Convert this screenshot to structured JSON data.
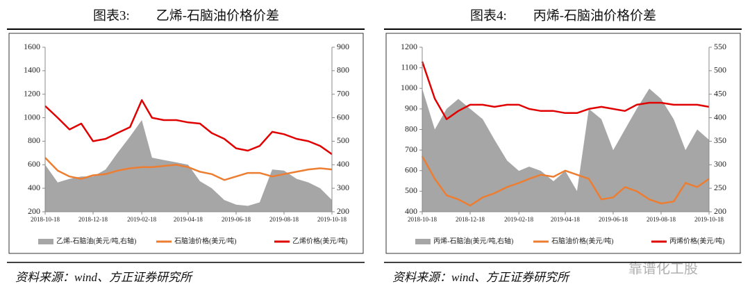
{
  "chart_data": [
    {
      "type": "line",
      "title": "图表3:　　乙烯-石脑油价格价差",
      "x": [
        "2018-10-18",
        "2018-11-03",
        "2018-11-18",
        "2018-12-03",
        "2018-12-18",
        "2019-01-03",
        "2019-01-18",
        "2019-02-03",
        "2019-02-18",
        "2019-03-03",
        "2019-03-18",
        "2019-04-03",
        "2019-04-18",
        "2019-05-03",
        "2019-05-18",
        "2019-06-03",
        "2019-06-18",
        "2019-07-03",
        "2019-07-18",
        "2019-08-03",
        "2019-08-18",
        "2019-09-03",
        "2019-09-18",
        "2019-10-03",
        "2019-10-18"
      ],
      "xlim": [
        "2018-10-18",
        "2019-10-18"
      ],
      "xticks": [
        "2018-10-18",
        "2018-12-18",
        "2019-02-18",
        "2019-04-18",
        "2019-06-18",
        "2019-08-18",
        "2019-10-18"
      ],
      "ylim": [
        200,
        1600
      ],
      "yticks": [
        200,
        400,
        600,
        800,
        1000,
        1200,
        1400,
        1600
      ],
      "y2lim": [
        200,
        900
      ],
      "y2ticks": [
        200,
        300,
        400,
        500,
        600,
        700,
        800,
        900
      ],
      "series": [
        {
          "name": "乙烯-石脑油(美元/吨,右轴)",
          "type": "area",
          "axis": "y2",
          "color": "#a6a6a6",
          "values": [
            400,
            325,
            340,
            350,
            350,
            380,
            450,
            520,
            590,
            430,
            420,
            410,
            400,
            330,
            300,
            250,
            230,
            225,
            240,
            380,
            375,
            340,
            325,
            300,
            250
          ]
        },
        {
          "name": "石脑油价格(美元/吨)",
          "type": "line",
          "color": "#ed7d31",
          "values": [
            660,
            550,
            500,
            480,
            510,
            520,
            550,
            570,
            580,
            580,
            590,
            600,
            580,
            540,
            520,
            470,
            500,
            530,
            530,
            500,
            520,
            540,
            560,
            570,
            560
          ]
        },
        {
          "name": "乙烯价格(美元/吨)",
          "type": "line",
          "color": "#e00000",
          "values": [
            1100,
            1000,
            900,
            950,
            800,
            820,
            870,
            920,
            1150,
            1000,
            980,
            980,
            960,
            950,
            870,
            820,
            740,
            720,
            760,
            880,
            860,
            820,
            800,
            760,
            690
          ]
        }
      ],
      "source": "资料来源：wind、方正证券研究所"
    },
    {
      "type": "line",
      "title": "图表4:　　丙烯-石脑油价格价差",
      "x": [
        "2018-10-18",
        "2018-11-03",
        "2018-11-18",
        "2018-12-03",
        "2018-12-18",
        "2019-01-03",
        "2019-01-18",
        "2019-02-03",
        "2019-02-18",
        "2019-03-03",
        "2019-03-18",
        "2019-04-03",
        "2019-04-18",
        "2019-05-03",
        "2019-05-18",
        "2019-06-03",
        "2019-06-18",
        "2019-07-03",
        "2019-07-18",
        "2019-08-03",
        "2019-08-18",
        "2019-09-03",
        "2019-09-18",
        "2019-10-03",
        "2019-10-18"
      ],
      "xlim": [
        "2018-10-18",
        "2019-10-18"
      ],
      "xticks": [
        "2018-10-18",
        "2018-12-18",
        "2019-02-18",
        "2019-04-18",
        "2019-06-18",
        "2019-08-18",
        "2019-10-18"
      ],
      "ylim": [
        400,
        1200
      ],
      "yticks": [
        400,
        500,
        600,
        700,
        800,
        900,
        1000,
        1100,
        1200
      ],
      "y2lim": [
        200,
        550
      ],
      "y2ticks": [
        200,
        250,
        300,
        350,
        400,
        450,
        500,
        550
      ],
      "series": [
        {
          "name": "丙烯-石脑油(美元/吨,右轴)",
          "type": "area",
          "axis": "y2",
          "color": "#a6a6a6",
          "values": [
            462,
            375,
            419,
            440,
            419,
            397,
            353,
            309,
            287,
            296,
            287,
            265,
            287,
            244,
            419,
            397,
            331,
            375,
            419,
            462,
            440,
            397,
            331,
            375,
            353
          ]
        },
        {
          "name": "石脑油价格(美元/吨)",
          "type": "line",
          "color": "#ed7d31",
          "values": [
            670,
            560,
            480,
            460,
            430,
            470,
            490,
            520,
            540,
            560,
            580,
            570,
            600,
            580,
            560,
            460,
            470,
            520,
            500,
            460,
            440,
            450,
            540,
            520,
            560
          ]
        },
        {
          "name": "丙烯价格(美元/吨)",
          "type": "line",
          "color": "#e00000",
          "values": [
            1130,
            950,
            850,
            890,
            920,
            920,
            910,
            920,
            920,
            900,
            890,
            890,
            880,
            880,
            900,
            910,
            900,
            890,
            920,
            930,
            930,
            920,
            920,
            920,
            910
          ]
        }
      ],
      "source": "资料来源：wind、方正证券研究所"
    }
  ],
  "watermark": "靠谱化工股"
}
